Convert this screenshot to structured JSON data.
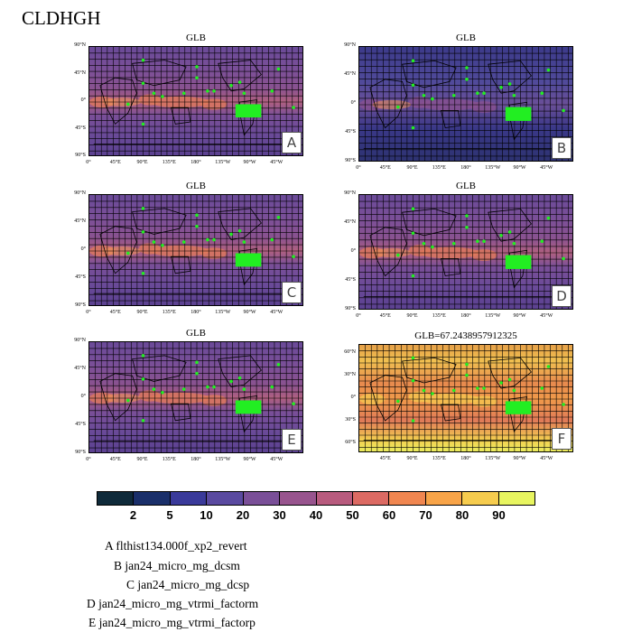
{
  "title": "CLDHGH",
  "panels": [
    {
      "id": "A",
      "title": "GLB",
      "letter": "A",
      "variant": "a"
    },
    {
      "id": "B",
      "title": "GLB",
      "letter": "B",
      "variant": "b"
    },
    {
      "id": "C",
      "title": "GLB",
      "letter": "C",
      "variant": "a"
    },
    {
      "id": "D",
      "title": "GLB",
      "letter": "D",
      "variant": "a"
    },
    {
      "id": "E",
      "title": "GLB",
      "letter": "E",
      "variant": "a"
    },
    {
      "id": "F",
      "title": "GLB=67.2438957912325",
      "letter": "F",
      "variant": "f"
    }
  ],
  "lat_labels_std": [
    "90°N",
    "45°N",
    "0°",
    "45°S",
    "90°S"
  ],
  "lon_labels_std": [
    "0°",
    "45°E",
    "90°E",
    "135°E",
    "180°",
    "135°W",
    "90°W",
    "45°W"
  ],
  "lat_labels_f": [
    "60°N",
    "30°N",
    "0°",
    "30°S",
    "60°S"
  ],
  "lon_labels_f": [
    "45°E",
    "90°E",
    "135°E",
    "180°",
    "135°W",
    "90°W",
    "45°W"
  ],
  "colorbar": {
    "colors": [
      "#0f2a3a",
      "#1a2f6a",
      "#3a3a9a",
      "#5a4aa0",
      "#7a4f98",
      "#98548e",
      "#b85b7e",
      "#dc6a63",
      "#f08650",
      "#f8a448",
      "#f6cc4e",
      "#e8f560"
    ],
    "labels": [
      "2",
      "5",
      "10",
      "20",
      "30",
      "40",
      "50",
      "60",
      "70",
      "80",
      "90"
    ]
  },
  "legend": [
    {
      "letter": "A",
      "name": "flthist134.000f_xp2_revert"
    },
    {
      "letter": "B",
      "name": "jan24_micro_mg_dcsm"
    },
    {
      "letter": "C",
      "name": "jan24_micro_mg_dcsp"
    },
    {
      "letter": "D",
      "name": "jan24_micro_mg_vtrmi_factorm"
    },
    {
      "letter": "E",
      "name": "jan24_micro_mg_vtrmi_factorp"
    }
  ]
}
